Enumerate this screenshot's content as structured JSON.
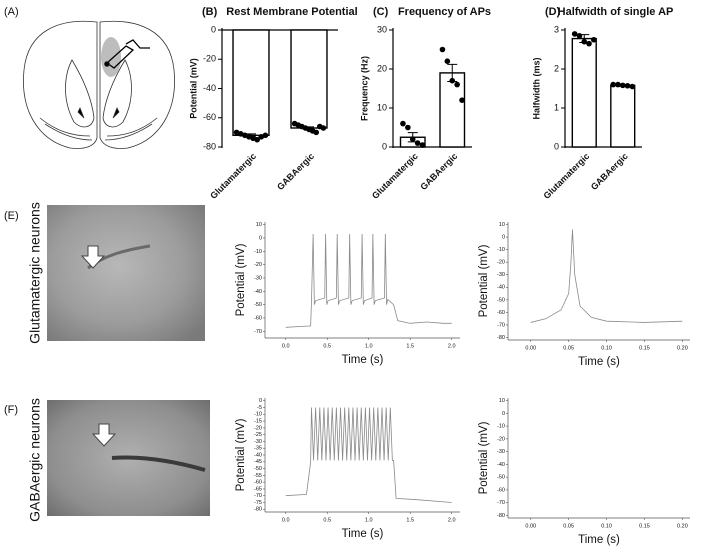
{
  "figure": {
    "panel_labels": [
      "(A)",
      "(E)",
      "(F)"
    ],
    "row_labels": [
      "Glutamatergic neurons",
      "GABAergic neurons"
    ]
  },
  "chart_data": [
    {
      "type": "bar",
      "panel": "(B)",
      "title": "Rest Membrane Potential",
      "ylabel": "Potential (mV)",
      "categories": [
        "Glutamatergic",
        "GABAergic"
      ],
      "values": [
        -72,
        -67
      ],
      "errors": [
        1,
        0.8
      ],
      "points": [
        [
          -70,
          -71,
          -72,
          -73,
          -74,
          -75,
          -73,
          -72
        ],
        [
          -64,
          -65,
          -66,
          -67,
          -68,
          -69,
          -70,
          -66,
          -67
        ]
      ],
      "color": "#ffffff",
      "ylim": [
        -80,
        0
      ],
      "yticks": [
        0,
        -20,
        -40,
        -60,
        -80
      ]
    },
    {
      "type": "bar",
      "panel": "(C)",
      "title": "Frequency of APs",
      "ylabel": "Frequency (Hz)",
      "categories": [
        "Glutamatergic",
        "GABAergic"
      ],
      "values": [
        2.5,
        19
      ],
      "errors": [
        1.2,
        2.2
      ],
      "points": [
        [
          6,
          5,
          2,
          1,
          0.5
        ],
        [
          25,
          22,
          17,
          16,
          12
        ]
      ],
      "color": "#ffffff",
      "ylim": [
        0,
        30
      ],
      "yticks": [
        0,
        10,
        20,
        30
      ]
    },
    {
      "type": "bar",
      "panel": "(D)",
      "title": "Halfwidth of single AP",
      "ylabel": "Halfwidth (ms)",
      "categories": [
        "Glutamatergic",
        "GABAergic"
      ],
      "values": [
        2.78,
        1.58
      ],
      "errors": [
        0.1,
        0.02
      ],
      "points": [
        [
          2.9,
          2.85,
          2.7,
          2.65,
          2.75
        ],
        [
          1.6,
          1.6,
          1.58,
          1.57,
          1.55
        ]
      ],
      "color": "#ffffff",
      "ylim": [
        0,
        3
      ],
      "yticks": [
        0,
        1,
        2,
        3
      ]
    },
    {
      "type": "line",
      "xlabel": "Time (s)",
      "ylabel": "Potential (mV)",
      "x": [
        0,
        0.28,
        0.3,
        0.31,
        0.33,
        0.345,
        0.36,
        0.47,
        0.48,
        0.495,
        0.51,
        0.61,
        0.62,
        0.635,
        0.65,
        0.76,
        0.77,
        0.785,
        0.8,
        0.91,
        0.92,
        0.935,
        0.95,
        1.04,
        1.05,
        1.065,
        1.08,
        1.19,
        1.2,
        1.215,
        1.23,
        1.3,
        1.35,
        1.5,
        1.7,
        1.9,
        2.0
      ],
      "series": [
        {
          "color": "#8a8a8a",
          "values": [
            -67,
            -66,
            -66,
            -48,
            3,
            -50,
            -47,
            -45,
            3,
            -50,
            -47,
            -45,
            3,
            -50,
            -47,
            -45,
            3,
            -50,
            -47,
            -45,
            3,
            -50,
            -47,
            -45,
            3,
            -50,
            -47,
            -45,
            3,
            -50,
            -46,
            -50,
            -62,
            -64,
            -63,
            -64,
            -64
          ]
        }
      ],
      "xlim": [
        -0.25,
        2.1
      ],
      "xticks": [
        {
          "value": 0,
          "label": "0.0"
        },
        0.5,
        {
          "value": 1,
          "label": "1.0"
        },
        1.5,
        {
          "value": 2,
          "label": "2.0"
        }
      ],
      "ylim": [
        -75,
        12
      ],
      "yticks": [
        10,
        0,
        -10,
        -20,
        -30,
        -40,
        -50,
        -60,
        -70
      ]
    },
    {
      "type": "line",
      "xlabel": "Time (s)",
      "ylabel": "Potential (mV)",
      "x": [
        0,
        0.02,
        0.04,
        0.05,
        0.053,
        0.055,
        0.058,
        0.065,
        0.08,
        0.1,
        0.15,
        0.2
      ],
      "series": [
        {
          "color": "#8a8a8a",
          "values": [
            -68,
            -65,
            -58,
            -45,
            -20,
            6,
            -30,
            -55,
            -64,
            -67,
            -68,
            -67
          ]
        }
      ],
      "xlim": [
        -0.03,
        0.21
      ],
      "xticks": [
        {
          "value": 0,
          "label": "0.00"
        },
        {
          "value": 0.05,
          "label": "0.05"
        },
        {
          "value": 0.1,
          "label": "0.10"
        },
        {
          "value": 0.15,
          "label": "0.15"
        },
        {
          "value": 0.2,
          "label": "0.20"
        }
      ],
      "ylim": [
        -82,
        12
      ],
      "yticks": [
        10,
        0,
        -10,
        -20,
        -30,
        -40,
        -50,
        -60,
        -70,
        -80
      ]
    },
    {
      "type": "line",
      "xlabel": "Time (s)",
      "ylabel": "Potential (mV)",
      "x": [
        0,
        0.25,
        0.3,
        0.31,
        0.335,
        0.36,
        0.385,
        0.41,
        0.435,
        0.46,
        0.485,
        0.51,
        0.535,
        0.56,
        0.585,
        0.61,
        0.635,
        0.66,
        0.685,
        0.71,
        0.735,
        0.76,
        0.785,
        0.81,
        0.835,
        0.86,
        0.885,
        0.91,
        0.935,
        0.96,
        0.985,
        1.01,
        1.035,
        1.06,
        1.085,
        1.11,
        1.135,
        1.16,
        1.185,
        1.21,
        1.235,
        1.26,
        1.285,
        1.3,
        1.33,
        1.6,
        2.0
      ],
      "series": [
        {
          "color": "#8a8a8a",
          "values": [
            -70,
            -69,
            -45,
            -5,
            -44,
            -5,
            -44,
            -5,
            -44,
            -5,
            -44,
            -5,
            -44,
            -5,
            -44,
            -5,
            -44,
            -5,
            -44,
            -5,
            -44,
            -5,
            -44,
            -5,
            -44,
            -5,
            -44,
            -5,
            -44,
            -5,
            -44,
            -5,
            -44,
            -5,
            -44,
            -5,
            -44,
            -5,
            -44,
            -5,
            -44,
            -5,
            -44,
            -44,
            -72,
            -73,
            -75
          ]
        }
      ],
      "xlim": [
        -0.25,
        2.1
      ],
      "xticks": [
        {
          "value": 0,
          "label": "0.0"
        },
        0.5,
        {
          "value": 1,
          "label": "1.0"
        },
        1.5,
        {
          "value": 2,
          "label": "2.0"
        }
      ],
      "ylim": [
        -82,
        2
      ],
      "yticks": [
        0,
        -5,
        -10,
        -15,
        -20,
        -25,
        -30,
        -35,
        -40,
        -45,
        -50,
        -55,
        -60,
        -65,
        -70,
        -75,
        -80
      ]
    },
    {
      "type": "line",
      "xlabel": "Time (s)",
      "ylabel": "Potential (mV)",
      "x": [],
      "series": [],
      "xlim": [
        -0.03,
        0.21
      ],
      "xticks": [
        {
          "value": 0,
          "label": "0.00"
        },
        {
          "value": 0.05,
          "label": "0.05"
        },
        {
          "value": 0.1,
          "label": "0.10"
        },
        {
          "value": 0.15,
          "label": "0.15"
        },
        {
          "value": 0.2,
          "label": "0.20"
        }
      ],
      "ylim": [
        -82,
        12
      ],
      "yticks": [
        10,
        0,
        -10,
        -20,
        -30,
        -40,
        -50,
        -60,
        -70,
        -80
      ]
    }
  ]
}
